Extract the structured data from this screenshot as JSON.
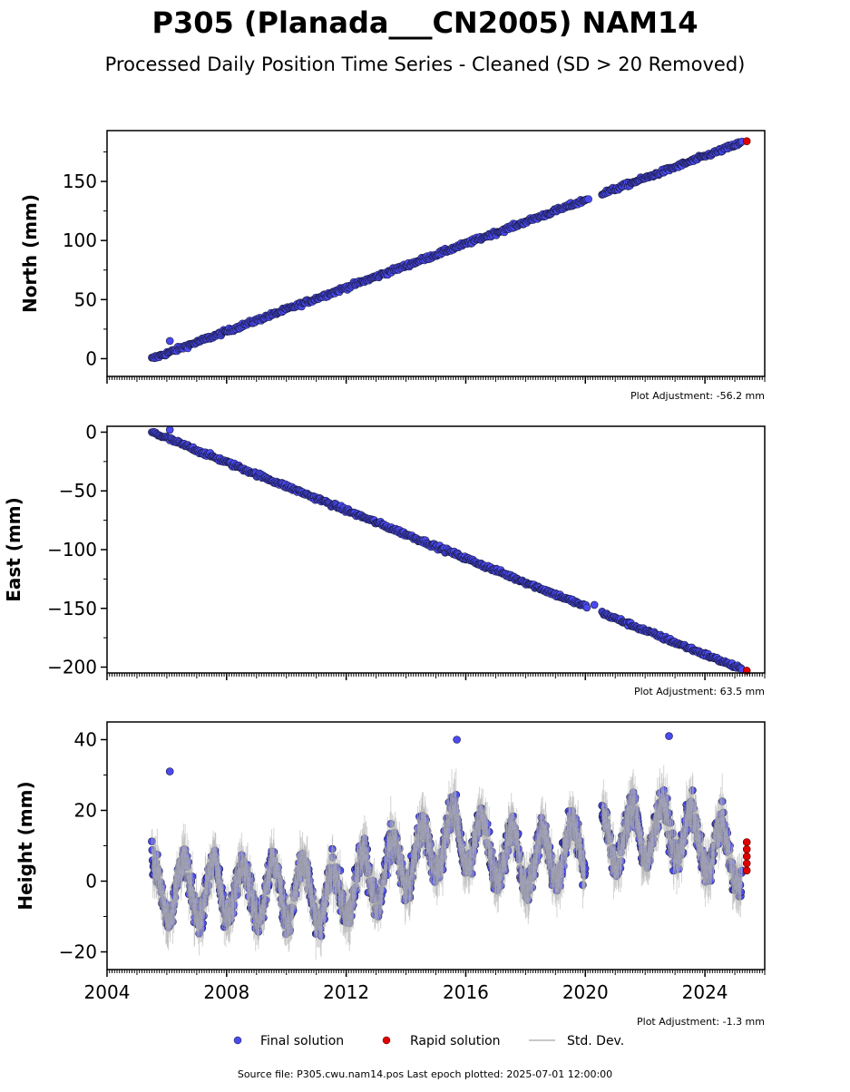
{
  "title": "P305 (Planada___CN2005) NAM14",
  "subtitle": "Processed Daily Position Time Series - Cleaned (SD > 20 Removed)",
  "source_text": "Source file: P305.cwu.nam14.pos  Last epoch plotted: 2025-07-01 12:00:00",
  "colors": {
    "final": "#4a4af0",
    "final_edge": "#1a1a40",
    "rapid": "#e00000",
    "std": "#b0b0b0"
  },
  "legend": [
    {
      "label": "Final solution",
      "marker": "circle",
      "color": "#4a4af0"
    },
    {
      "label": "Rapid solution",
      "marker": "circle",
      "color": "#e00000"
    },
    {
      "label": "Std. Dev.",
      "marker": "line",
      "color": "#c8c8c8"
    }
  ],
  "chart_data": [
    {
      "type": "scatter",
      "ylabel": "North (mm)",
      "adjustment": "Plot Adjustment: -56.2 mm",
      "xlim": [
        2004.0,
        2026.0
      ],
      "ylim": [
        -15,
        193
      ],
      "yticks": [
        0,
        50,
        100,
        150
      ],
      "grid": false,
      "series": [
        {
          "name": "Final solution",
          "trend": {
            "x": [
              2005.5,
              2025.25
            ],
            "y": [
              0,
              183
            ]
          }
        },
        {
          "name": "Rapid solution",
          "points": [
            [
              2025.4,
              184
            ]
          ]
        }
      ],
      "outliers": [
        [
          2006.1,
          15
        ],
        [
          2020.1,
          135
        ]
      ]
    },
    {
      "type": "scatter",
      "ylabel": "East (mm)",
      "adjustment": "Plot Adjustment: 63.5 mm",
      "xlim": [
        2004.0,
        2026.0
      ],
      "ylim": [
        -205,
        5
      ],
      "yticks": [
        0,
        -50,
        -100,
        -150,
        -200
      ],
      "grid": false,
      "series": [
        {
          "name": "Final solution",
          "trend": {
            "x": [
              2005.5,
              2025.25
            ],
            "y": [
              0,
              -202
            ]
          }
        },
        {
          "name": "Rapid solution",
          "points": [
            [
              2025.4,
              -203
            ]
          ]
        }
      ],
      "outliers": [
        [
          2006.1,
          2
        ],
        [
          2020.3,
          -147
        ]
      ]
    },
    {
      "type": "scatter",
      "ylabel": "Height (mm)",
      "adjustment": "Plot Adjustment: -1.3 mm",
      "xlim": [
        2004.0,
        2026.0
      ],
      "ylim": [
        -25,
        45
      ],
      "yticks": [
        -20,
        0,
        20,
        40
      ],
      "xticks": [
        2004,
        2008,
        2012,
        2016,
        2020,
        2024
      ],
      "grid": false,
      "series": [
        {
          "name": "Final solution",
          "seasonal_amplitude_mm": 8,
          "noise_mm": 4
        },
        {
          "name": "Rapid solution",
          "points": [
            [
              2025.4,
              3
            ],
            [
              2025.4,
              5
            ],
            [
              2025.4,
              7
            ],
            [
              2025.4,
              9
            ],
            [
              2025.4,
              11
            ]
          ]
        }
      ],
      "envelope": {
        "x": [
          2005.5,
          2010.9,
          2011.2,
          2015.7,
          2018.0,
          2020.6,
          2022.8,
          2025.25
        ],
        "y": [
          -2,
          -3,
          -6,
          13,
          5,
          12,
          15,
          6
        ]
      },
      "outliers": [
        [
          2006.1,
          31
        ],
        [
          2015.7,
          40
        ],
        [
          2022.8,
          41
        ]
      ]
    }
  ]
}
